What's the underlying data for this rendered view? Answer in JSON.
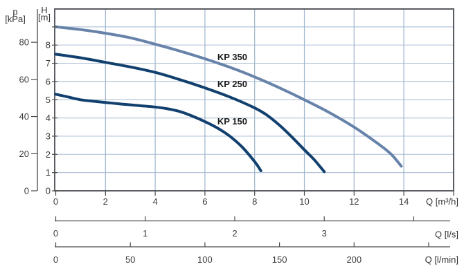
{
  "chart_data": {
    "type": "line",
    "title": "",
    "xlabel": "Q [m³/h]",
    "ylabel": "H [m]",
    "x_axis": {
      "label": "Q [m³/h]",
      "ticks": [
        0,
        2,
        4,
        6,
        8,
        10,
        12,
        14
      ],
      "gridline_values": [
        2,
        4,
        6,
        8,
        10,
        12,
        14
      ],
      "range": [
        0,
        16
      ]
    },
    "y_axis": {
      "symbol": "H",
      "unit": "[m]",
      "label": "H [m]",
      "ticks": [
        0,
        1,
        2,
        3,
        4,
        5,
        6,
        7,
        8
      ],
      "tick_marks": [
        0,
        1,
        2,
        3,
        4,
        5,
        6,
        7,
        8,
        9
      ],
      "gridline_values": [
        1,
        2,
        3,
        4,
        5,
        6,
        7,
        8,
        9
      ],
      "range": [
        0,
        10
      ]
    },
    "y2_axis": {
      "symbol": "p",
      "unit": "[kPa]",
      "label": "p [kPa]",
      "ticks": [
        0,
        20,
        40,
        60,
        80
      ],
      "kpa_per_m": 9.81
    },
    "x2_axis": {
      "label": "Q [l/s]",
      "tick_values": [
        0,
        1,
        2,
        3,
        4
      ],
      "labeled_ticks": [
        0,
        1,
        2,
        3
      ],
      "m3h_per_unit": 3.6
    },
    "x3_axis": {
      "label": "Q [l/min]",
      "tick_values": [
        0,
        50,
        100,
        150,
        200,
        250
      ],
      "labeled_ticks": [
        0,
        50,
        100,
        150,
        200
      ],
      "m3h_per_unit": 0.06
    },
    "grid": true,
    "legend": "inline-curve-labels",
    "series": [
      {
        "name": "KP 350",
        "color": "#6783aa",
        "points": [
          [
            0,
            9.0
          ],
          [
            1,
            8.85
          ],
          [
            2,
            8.65
          ],
          [
            3,
            8.4
          ],
          [
            4,
            8.05
          ],
          [
            5,
            7.67
          ],
          [
            6,
            7.25
          ],
          [
            7,
            6.78
          ],
          [
            8,
            6.25
          ],
          [
            9,
            5.65
          ],
          [
            10,
            5.0
          ],
          [
            11,
            4.3
          ],
          [
            12,
            3.5
          ],
          [
            13,
            2.55
          ],
          [
            13.5,
            2.0
          ],
          [
            13.9,
            1.35
          ]
        ]
      },
      {
        "name": "KP 250",
        "color": "#11406e",
        "points": [
          [
            0,
            7.5
          ],
          [
            1,
            7.3
          ],
          [
            2,
            7.05
          ],
          [
            3,
            6.8
          ],
          [
            4,
            6.5
          ],
          [
            5,
            6.1
          ],
          [
            6,
            5.65
          ],
          [
            7,
            5.15
          ],
          [
            8,
            4.55
          ],
          [
            8.5,
            4.15
          ],
          [
            9,
            3.6
          ],
          [
            9.5,
            2.95
          ],
          [
            10,
            2.25
          ],
          [
            10.4,
            1.7
          ],
          [
            10.8,
            1.05
          ]
        ]
      },
      {
        "name": "KP 150",
        "color": "#11406e",
        "points": [
          [
            0,
            5.3
          ],
          [
            0.5,
            5.15
          ],
          [
            1,
            5.0
          ],
          [
            1.5,
            4.92
          ],
          [
            2,
            4.85
          ],
          [
            2.5,
            4.78
          ],
          [
            3,
            4.72
          ],
          [
            3.5,
            4.66
          ],
          [
            4,
            4.6
          ],
          [
            4.5,
            4.5
          ],
          [
            5,
            4.35
          ],
          [
            5.5,
            4.1
          ],
          [
            6,
            3.8
          ],
          [
            6.5,
            3.45
          ],
          [
            7,
            3.0
          ],
          [
            7.5,
            2.4
          ],
          [
            8,
            1.6
          ],
          [
            8.25,
            1.1
          ]
        ]
      }
    ],
    "curve_labels": [
      {
        "text": "KP 350",
        "q": 6.5,
        "h": 7.18
      },
      {
        "text": "KP 250",
        "q": 6.5,
        "h": 5.7
      },
      {
        "text": "KP 150",
        "q": 6.5,
        "h": 3.65
      }
    ]
  },
  "colors": {
    "curve_dark": "#11406e",
    "curve_light": "#6783aa",
    "grid_horizontal": "#b4c6da",
    "grid_vertical": "#9fb5ce",
    "frame": "#5a5d61",
    "axis": "#4b4b4b",
    "text": "#3b3b3b"
  }
}
